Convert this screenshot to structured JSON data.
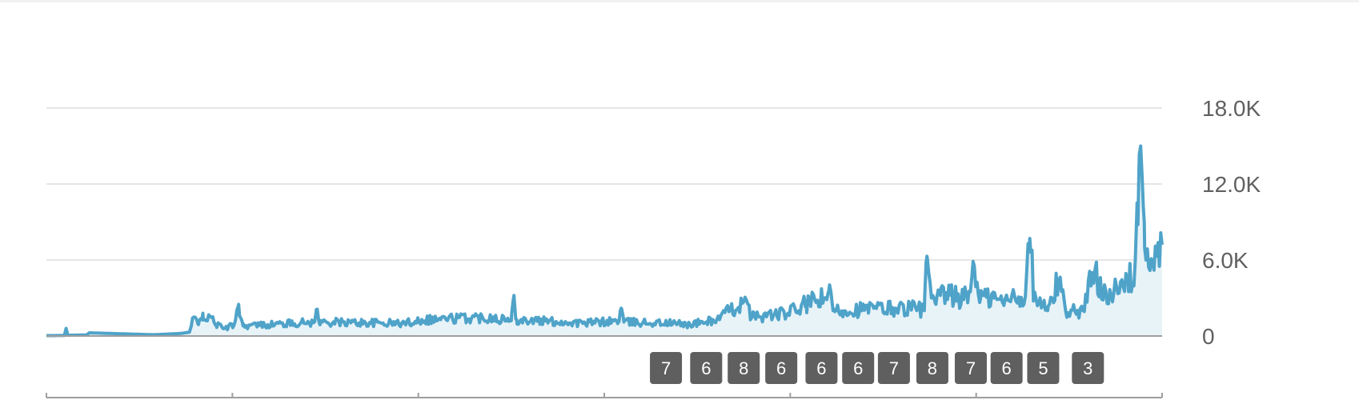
{
  "chart_data": {
    "type": "area",
    "colors": {
      "line": "#4fa3c9",
      "fill": "#e8f3f8",
      "grid": "#e6e6e6",
      "axis": "#9e9e9e",
      "badge": "#5f5f5f"
    },
    "grid": true,
    "ylim": [
      0,
      18000
    ],
    "y_ticks": [
      {
        "value": 0,
        "label": "0"
      },
      {
        "value": 6000,
        "label": "6.0K"
      },
      {
        "value": 12000,
        "label": "12.0K"
      },
      {
        "value": 18000,
        "label": "18.0K"
      }
    ],
    "x_range": [
      0,
      1200
    ],
    "x_scale_ticks": [
      0,
      200,
      400,
      600,
      800,
      1000,
      1200
    ],
    "anchors": [
      [
        0,
        30
      ],
      [
        20,
        40
      ],
      [
        22,
        600
      ],
      [
        24,
        60
      ],
      [
        45,
        80
      ],
      [
        48,
        250
      ],
      [
        120,
        100
      ],
      [
        150,
        200
      ],
      [
        160,
        300
      ],
      [
        165,
        1500
      ],
      [
        170,
        900
      ],
      [
        175,
        1800
      ],
      [
        180,
        1200
      ],
      [
        185,
        1500
      ],
      [
        190,
        900
      ],
      [
        200,
        600
      ],
      [
        210,
        900
      ],
      [
        215,
        2500
      ],
      [
        220,
        800
      ],
      [
        300,
        1100
      ],
      [
        302,
        2100
      ],
      [
        305,
        1100
      ],
      [
        400,
        1000
      ],
      [
        420,
        1300
      ],
      [
        500,
        1500
      ],
      [
        520,
        1200
      ],
      [
        523,
        3200
      ],
      [
        526,
        1300
      ],
      [
        600,
        1000
      ],
      [
        640,
        1200
      ],
      [
        643,
        2200
      ],
      [
        646,
        1100
      ],
      [
        700,
        1000
      ],
      [
        720,
        900
      ],
      [
        750,
        1300
      ],
      [
        765,
        2000
      ],
      [
        780,
        2700
      ],
      [
        790,
        1500
      ],
      [
        830,
        1800
      ],
      [
        850,
        2500
      ],
      [
        870,
        3000
      ],
      [
        875,
        3500
      ],
      [
        880,
        2000
      ],
      [
        950,
        2200
      ],
      [
        975,
        2200
      ],
      [
        982,
        2000
      ],
      [
        985,
        6300
      ],
      [
        990,
        3000
      ],
      [
        995,
        2500
      ],
      [
        1000,
        3200
      ],
      [
        1030,
        3000
      ],
      [
        1038,
        5500
      ],
      [
        1045,
        3000
      ],
      [
        1060,
        3000
      ],
      [
        1070,
        2600
      ],
      [
        1080,
        3200
      ],
      [
        1095,
        3100
      ],
      [
        1100,
        7700
      ],
      [
        1105,
        3000
      ],
      [
        1120,
        2000
      ],
      [
        1133,
        4500
      ],
      [
        1140,
        2000
      ],
      [
        1160,
        2000
      ],
      [
        1170,
        5000
      ],
      [
        1185,
        3600
      ],
      [
        1200,
        3400
      ],
      [
        1210,
        4600
      ],
      [
        1215,
        4200
      ],
      [
        1218,
        6000
      ],
      [
        1220,
        10500
      ],
      [
        1222,
        13000
      ],
      [
        1224,
        15000
      ],
      [
        1226,
        12000
      ],
      [
        1228,
        9000
      ],
      [
        1230,
        6000
      ],
      [
        1233,
        5400
      ],
      [
        1236,
        6100
      ],
      [
        1239,
        5200
      ],
      [
        1242,
        6300
      ],
      [
        1245,
        5500
      ],
      [
        1248,
        7200
      ]
    ],
    "annotations": [
      {
        "label": "7",
        "x": 693
      },
      {
        "label": "6",
        "x": 738
      },
      {
        "label": "8",
        "x": 780
      },
      {
        "label": "6",
        "x": 822
      },
      {
        "label": "6",
        "x": 867
      },
      {
        "label": "6",
        "x": 908
      },
      {
        "label": "7",
        "x": 948
      },
      {
        "label": "8",
        "x": 991
      },
      {
        "label": "7",
        "x": 1034
      },
      {
        "label": "6",
        "x": 1074
      },
      {
        "label": "5",
        "x": 1115
      },
      {
        "label": "3",
        "x": 1165
      }
    ]
  }
}
